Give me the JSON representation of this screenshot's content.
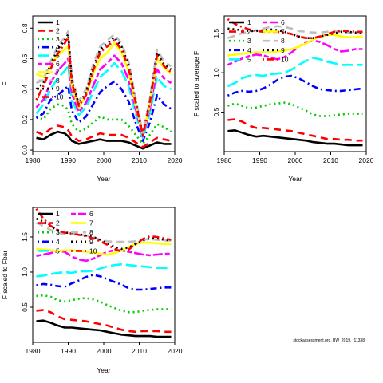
{
  "chart_data": [
    {
      "type": "line",
      "title": "",
      "xlabel": "Year",
      "ylabel": "F",
      "xlim": [
        1980,
        2020
      ],
      "ylim": [
        -0.01,
        0.88
      ],
      "xticks": [
        1980,
        1990,
        2000,
        2010,
        2020
      ],
      "yticks": [
        0.0,
        0.2,
        0.4,
        0.6,
        0.8
      ],
      "ytick_labels": [
        "0.0",
        "0.2",
        "0.4",
        "0.6",
        "0.8"
      ],
      "legend": "top-left",
      "legend_entries": [
        "1",
        "2",
        "3",
        "4",
        "5",
        "6",
        "7",
        "8",
        "9",
        "10"
      ],
      "x": [
        1981,
        1983,
        1985,
        1987,
        1989,
        1990,
        1991,
        1993,
        1995,
        1997,
        1999,
        2001,
        2003,
        2005,
        2007,
        2009,
        2011,
        2013,
        2015,
        2017,
        2019
      ],
      "series": [
        {
          "name": "1",
          "values": [
            0.08,
            0.07,
            0.1,
            0.12,
            0.11,
            0.09,
            0.06,
            0.04,
            0.05,
            0.06,
            0.07,
            0.06,
            0.06,
            0.06,
            0.05,
            0.03,
            0.01,
            0.03,
            0.05,
            0.04,
            0.04
          ]
        },
        {
          "name": "2",
          "values": [
            0.12,
            0.1,
            0.14,
            0.16,
            0.15,
            0.13,
            0.09,
            0.06,
            0.07,
            0.09,
            0.11,
            0.1,
            0.1,
            0.1,
            0.08,
            0.05,
            0.02,
            0.05,
            0.08,
            0.07,
            0.06
          ]
        },
        {
          "name": "3",
          "values": [
            0.22,
            0.2,
            0.27,
            0.3,
            0.29,
            0.26,
            0.17,
            0.12,
            0.14,
            0.18,
            0.22,
            0.2,
            0.2,
            0.2,
            0.16,
            0.1,
            0.04,
            0.1,
            0.17,
            0.15,
            0.12
          ]
        },
        {
          "name": "4",
          "values": [
            0.21,
            0.24,
            0.33,
            0.36,
            0.4,
            0.42,
            0.26,
            0.18,
            0.22,
            0.3,
            0.38,
            0.42,
            0.45,
            0.4,
            0.32,
            0.18,
            0.06,
            0.18,
            0.36,
            0.3,
            0.27
          ]
        },
        {
          "name": "5",
          "values": [
            0.24,
            0.3,
            0.4,
            0.47,
            0.52,
            0.55,
            0.33,
            0.23,
            0.28,
            0.38,
            0.48,
            0.52,
            0.57,
            0.52,
            0.42,
            0.24,
            0.08,
            0.24,
            0.48,
            0.42,
            0.4
          ]
        },
        {
          "name": "6",
          "values": [
            0.28,
            0.33,
            0.44,
            0.52,
            0.57,
            0.6,
            0.37,
            0.25,
            0.31,
            0.42,
            0.53,
            0.57,
            0.62,
            0.57,
            0.46,
            0.27,
            0.09,
            0.27,
            0.53,
            0.47,
            0.44
          ]
        },
        {
          "name": "7",
          "values": [
            0.5,
            0.48,
            0.55,
            0.62,
            0.66,
            0.68,
            0.42,
            0.28,
            0.36,
            0.5,
            0.6,
            0.64,
            0.7,
            0.64,
            0.52,
            0.3,
            0.1,
            0.3,
            0.6,
            0.54,
            0.5
          ]
        },
        {
          "name": "8",
          "values": [
            0.44,
            0.46,
            0.58,
            0.68,
            0.74,
            0.78,
            0.48,
            0.32,
            0.4,
            0.56,
            0.68,
            0.72,
            0.76,
            0.7,
            0.58,
            0.34,
            0.11,
            0.34,
            0.66,
            0.58,
            0.55
          ]
        },
        {
          "name": "9",
          "values": [
            0.4,
            0.44,
            0.56,
            0.66,
            0.72,
            0.76,
            0.46,
            0.3,
            0.38,
            0.54,
            0.66,
            0.7,
            0.74,
            0.68,
            0.56,
            0.32,
            0.1,
            0.32,
            0.64,
            0.56,
            0.53
          ]
        },
        {
          "name": "10",
          "values": [
            0.33,
            0.42,
            0.53,
            0.63,
            0.7,
            0.74,
            0.44,
            0.29,
            0.36,
            0.52,
            0.64,
            0.68,
            0.72,
            0.66,
            0.54,
            0.31,
            0.1,
            0.31,
            0.62,
            0.55,
            0.51
          ]
        }
      ]
    },
    {
      "type": "line",
      "title": "",
      "xlabel": "Year",
      "ylabel": "F scaled to average F",
      "xlim": [
        1980,
        2020
      ],
      "ylim": [
        0.0,
        1.72
      ],
      "xticks": [
        1980,
        1990,
        2000,
        2010,
        2020
      ],
      "yticks": [
        0.5,
        1.0,
        1.5
      ],
      "ytick_labels": [
        "0.5",
        "1.0",
        "1.5"
      ],
      "legend": "top-left",
      "legend_entries": [
        "1",
        "2",
        "3",
        "4",
        "5",
        "6",
        "7",
        "8",
        "9",
        "10"
      ],
      "x": [
        1981,
        1983,
        1985,
        1987,
        1989,
        1991,
        1993,
        1995,
        1997,
        1999,
        2001,
        2003,
        2005,
        2007,
        2009,
        2011,
        2013,
        2015,
        2017,
        2019
      ],
      "series": [
        {
          "name": "1",
          "values": [
            0.26,
            0.27,
            0.24,
            0.21,
            0.19,
            0.2,
            0.19,
            0.18,
            0.17,
            0.16,
            0.15,
            0.14,
            0.12,
            0.11,
            0.1,
            0.1,
            0.09,
            0.08,
            0.08,
            0.08
          ]
        },
        {
          "name": "2",
          "values": [
            0.4,
            0.41,
            0.38,
            0.33,
            0.3,
            0.3,
            0.29,
            0.28,
            0.27,
            0.26,
            0.24,
            0.22,
            0.2,
            0.18,
            0.16,
            0.16,
            0.15,
            0.15,
            0.14,
            0.14
          ]
        },
        {
          "name": "3",
          "values": [
            0.58,
            0.61,
            0.58,
            0.55,
            0.56,
            0.58,
            0.6,
            0.61,
            0.62,
            0.6,
            0.56,
            0.52,
            0.47,
            0.45,
            0.45,
            0.46,
            0.47,
            0.48,
            0.48,
            0.48
          ]
        },
        {
          "name": "4",
          "values": [
            0.71,
            0.75,
            0.77,
            0.76,
            0.77,
            0.8,
            0.85,
            0.91,
            0.95,
            0.96,
            0.93,
            0.88,
            0.83,
            0.79,
            0.78,
            0.77,
            0.77,
            0.78,
            0.79,
            0.8
          ]
        },
        {
          "name": "5",
          "values": [
            0.83,
            0.87,
            0.93,
            0.96,
            0.97,
            0.96,
            0.98,
            0.99,
            1.0,
            1.04,
            1.1,
            1.15,
            1.19,
            1.17,
            1.14,
            1.12,
            1.1,
            1.1,
            1.1,
            1.1
          ]
        },
        {
          "name": "6",
          "values": [
            1.1,
            1.14,
            1.18,
            1.21,
            1.23,
            1.22,
            1.19,
            1.17,
            1.2,
            1.26,
            1.33,
            1.38,
            1.41,
            1.39,
            1.35,
            1.3,
            1.27,
            1.28,
            1.3,
            1.3
          ]
        },
        {
          "name": "7",
          "values": [
            1.22,
            1.23,
            1.24,
            1.25,
            1.26,
            1.26,
            1.26,
            1.27,
            1.28,
            1.3,
            1.33,
            1.37,
            1.42,
            1.46,
            1.48,
            1.48,
            1.46,
            1.45,
            1.45,
            1.46
          ]
        },
        {
          "name": "8",
          "values": [
            1.44,
            1.47,
            1.5,
            1.52,
            1.54,
            1.56,
            1.58,
            1.59,
            1.58,
            1.56,
            1.53,
            1.52,
            1.51,
            1.51,
            1.52,
            1.53,
            1.52,
            1.51,
            1.5,
            1.5
          ]
        },
        {
          "name": "9",
          "values": [
            1.56,
            1.55,
            1.54,
            1.53,
            1.53,
            1.54,
            1.55,
            1.54,
            1.52,
            1.49,
            1.46,
            1.44,
            1.44,
            1.46,
            1.48,
            1.5,
            1.52,
            1.52,
            1.51,
            1.51
          ]
        },
        {
          "name": "10",
          "values": [
            1.68,
            1.62,
            1.58,
            1.55,
            1.53,
            1.52,
            1.52,
            1.52,
            1.51,
            1.49,
            1.46,
            1.44,
            1.44,
            1.46,
            1.49,
            1.52,
            1.53,
            1.53,
            1.52,
            1.52
          ]
        }
      ]
    },
    {
      "type": "line",
      "title": "",
      "xlabel": "Year",
      "ylabel": "F scaled to Fbar",
      "xlim": [
        1980,
        2020
      ],
      "ylim": [
        0.0,
        1.92
      ],
      "xticks": [
        1980,
        1990,
        2000,
        2010,
        2020
      ],
      "yticks": [
        0.5,
        1.0,
        1.5
      ],
      "ytick_labels": [
        "0.5",
        "1.0",
        "1.5"
      ],
      "legend": "top-left",
      "legend_entries": [
        "1",
        "2",
        "3",
        "4",
        "5",
        "6",
        "7",
        "8",
        "9",
        "10"
      ],
      "x": [
        1981,
        1983,
        1985,
        1987,
        1989,
        1991,
        1993,
        1995,
        1997,
        1999,
        2001,
        2003,
        2005,
        2007,
        2009,
        2011,
        2013,
        2015,
        2017,
        2019
      ],
      "series": [
        {
          "name": "1",
          "values": [
            0.3,
            0.31,
            0.28,
            0.24,
            0.21,
            0.21,
            0.2,
            0.19,
            0.18,
            0.17,
            0.15,
            0.13,
            0.11,
            0.1,
            0.09,
            0.09,
            0.09,
            0.08,
            0.08,
            0.08
          ]
        },
        {
          "name": "2",
          "values": [
            0.45,
            0.46,
            0.43,
            0.37,
            0.33,
            0.32,
            0.31,
            0.3,
            0.28,
            0.26,
            0.24,
            0.21,
            0.18,
            0.16,
            0.15,
            0.16,
            0.16,
            0.16,
            0.15,
            0.15
          ]
        },
        {
          "name": "3",
          "values": [
            0.66,
            0.67,
            0.65,
            0.6,
            0.58,
            0.6,
            0.62,
            0.63,
            0.61,
            0.58,
            0.53,
            0.49,
            0.45,
            0.43,
            0.43,
            0.45,
            0.46,
            0.47,
            0.47,
            0.47
          ]
        },
        {
          "name": "4",
          "values": [
            0.81,
            0.83,
            0.82,
            0.8,
            0.79,
            0.84,
            0.88,
            0.93,
            0.96,
            0.94,
            0.9,
            0.86,
            0.82,
            0.77,
            0.75,
            0.75,
            0.76,
            0.77,
            0.78,
            0.78
          ]
        },
        {
          "name": "5",
          "values": [
            0.94,
            0.95,
            0.97,
            0.99,
            1.0,
            0.99,
            1.01,
            1.01,
            1.02,
            1.05,
            1.08,
            1.1,
            1.11,
            1.1,
            1.09,
            1.08,
            1.07,
            1.06,
            1.06,
            1.05
          ]
        },
        {
          "name": "6",
          "values": [
            1.23,
            1.25,
            1.27,
            1.3,
            1.29,
            1.22,
            1.18,
            1.16,
            1.19,
            1.24,
            1.29,
            1.31,
            1.31,
            1.29,
            1.27,
            1.25,
            1.24,
            1.25,
            1.26,
            1.26
          ]
        },
        {
          "name": "7",
          "values": [
            1.33,
            1.32,
            1.31,
            1.3,
            1.31,
            1.31,
            1.3,
            1.29,
            1.28,
            1.26,
            1.25,
            1.27,
            1.31,
            1.36,
            1.4,
            1.42,
            1.42,
            1.41,
            1.4,
            1.4
          ]
        },
        {
          "name": "8",
          "values": [
            1.7,
            1.66,
            1.6,
            1.56,
            1.54,
            1.55,
            1.53,
            1.52,
            1.5,
            1.46,
            1.44,
            1.43,
            1.43,
            1.43,
            1.44,
            1.46,
            1.47,
            1.46,
            1.45,
            1.45
          ]
        },
        {
          "name": "9",
          "values": [
            1.76,
            1.72,
            1.65,
            1.6,
            1.56,
            1.56,
            1.54,
            1.52,
            1.5,
            1.46,
            1.41,
            1.36,
            1.33,
            1.35,
            1.4,
            1.45,
            1.48,
            1.48,
            1.46,
            1.45
          ]
        },
        {
          "name": "10",
          "values": [
            1.9,
            1.76,
            1.66,
            1.6,
            1.56,
            1.55,
            1.53,
            1.51,
            1.48,
            1.44,
            1.39,
            1.33,
            1.29,
            1.32,
            1.4,
            1.47,
            1.51,
            1.5,
            1.48,
            1.46
          ]
        }
      ]
    }
  ],
  "series_styles": [
    {
      "color": "#000000",
      "dash": "solid"
    },
    {
      "color": "#ff0000",
      "dash": "dashed"
    },
    {
      "color": "#00cd00",
      "dash": "dotted"
    },
    {
      "color": "#0000ff",
      "dash": "dotdash"
    },
    {
      "color": "#00ffff",
      "dash": "longdash"
    },
    {
      "color": "#ff00ff",
      "dash": "twodash"
    },
    {
      "color": "#ffff00",
      "dash": "solid"
    },
    {
      "color": "#bebebe",
      "dash": "dashed"
    },
    {
      "color": "#000000",
      "dash": "dotted"
    },
    {
      "color": "#ff0000",
      "dash": "dotdash"
    }
  ],
  "footnote": "stockassessment.org, BW_2019, r11338"
}
